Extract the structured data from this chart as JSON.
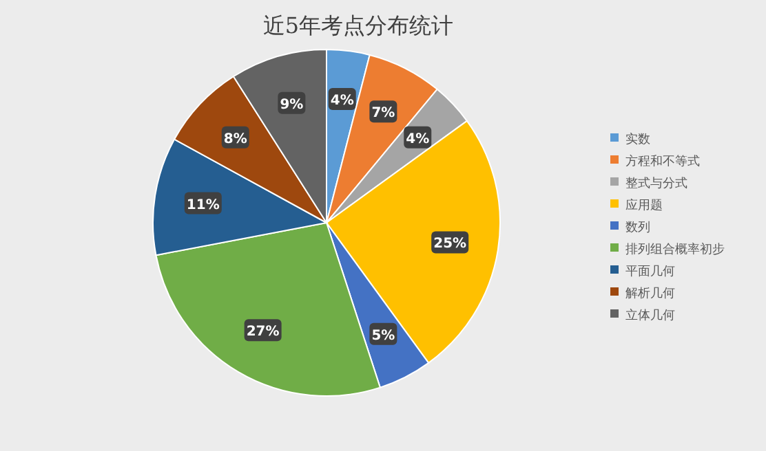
{
  "chart_data": {
    "type": "pie",
    "title": "近5年考点分布统计",
    "categories": [
      "实数",
      "方程和不等式",
      "整式与分式",
      "应用题",
      "数列",
      "排列组合概率初步",
      "平面几何",
      "解析几何",
      "立体几何"
    ],
    "values": [
      4,
      7,
      4,
      25,
      5,
      27,
      11,
      8,
      9
    ],
    "colors": [
      "#5b9bd5",
      "#ed7d31",
      "#a5a5a5",
      "#ffc000",
      "#4472c4",
      "#70ad47",
      "#255e91",
      "#9e480e",
      "#636363"
    ],
    "value_labels": [
      "4%",
      "7%",
      "4%",
      "25%",
      "5%",
      "27%",
      "11%",
      "8%",
      "9%"
    ],
    "legend": "right"
  }
}
